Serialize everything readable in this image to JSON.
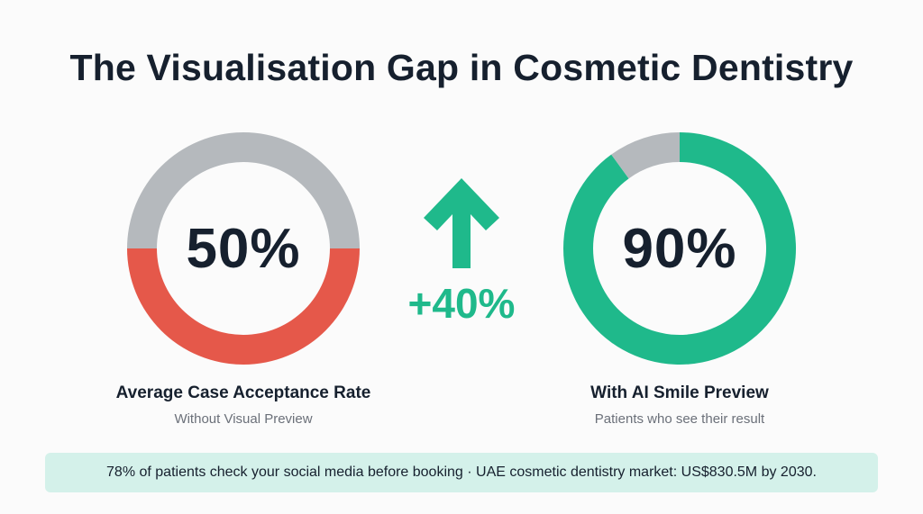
{
  "title": "The Visualisation Gap in Cosmetic Dentistry",
  "change_label": "+40%",
  "footer_note": "78% of patients check your social media before booking · UAE cosmetic dentistry market: US$830.5M by 2030.",
  "colors": {
    "red": "#e5584a",
    "grey": "#b5b9bd",
    "green": "#1fb98b"
  },
  "chart_data": [
    {
      "type": "pie",
      "center_label": "50%",
      "label": "Average Case Acceptance Rate",
      "sublabel": "Without Visual Preview",
      "slices": [
        {
          "value": 50,
          "color": "#e5584a"
        },
        {
          "value": 50,
          "color": "#b5b9bd"
        }
      ]
    },
    {
      "type": "pie",
      "center_label": "90%",
      "label": "With AI Smile Preview",
      "sublabel": "Patients who see their result",
      "slices": [
        {
          "value": 90,
          "color": "#1fb98b"
        },
        {
          "value": 10,
          "color": "#b5b9bd"
        }
      ]
    }
  ]
}
